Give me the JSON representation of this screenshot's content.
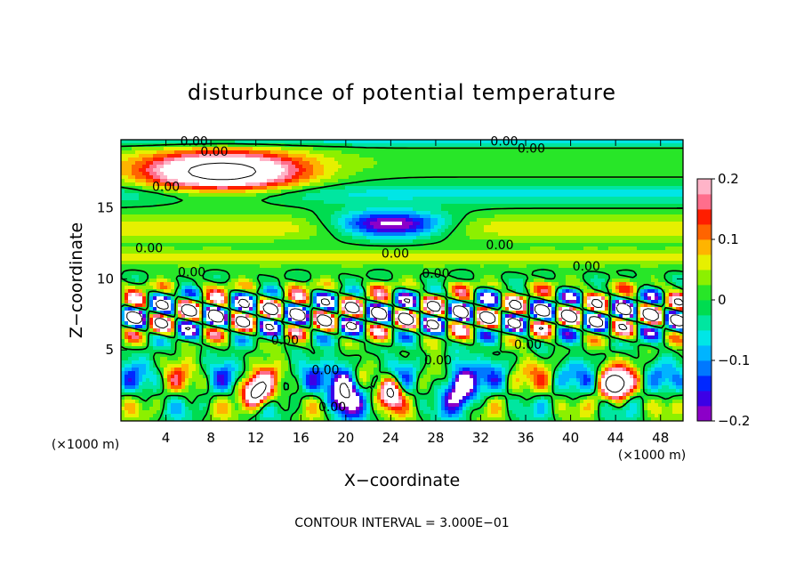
{
  "chart_data": {
    "type": "heatmap",
    "title": "disturbunce of potential temperature",
    "xlabel": "X−coordinate",
    "ylabel": "Z−coordinate",
    "x_unit_left": "(×1000 m)",
    "x_unit_right": "(×1000 m)",
    "xlim": [
      0,
      50
    ],
    "ylim": [
      0,
      19.8
    ],
    "x_ticks": [
      4,
      8,
      12,
      16,
      20,
      24,
      28,
      32,
      36,
      40,
      44,
      48
    ],
    "y_ticks": [
      5,
      10,
      15
    ],
    "colorbar": {
      "range": [
        -0.2,
        0.2
      ],
      "ticks": [
        {
          "value": 0.2,
          "label": "0.2"
        },
        {
          "value": 0.1,
          "label": "0.1"
        },
        {
          "value": 0.0,
          "label": "0"
        },
        {
          "value": -0.1,
          "label": "−0.1"
        },
        {
          "value": -0.2,
          "label": "−0.2"
        }
      ],
      "colors": [
        "#8c00c8",
        "#3c00e6",
        "#0028ff",
        "#0078ff",
        "#00b4ff",
        "#00e6e6",
        "#00e6a0",
        "#00dc50",
        "#28e628",
        "#8cf000",
        "#e6f000",
        "#ffb400",
        "#ff6400",
        "#ff1e00",
        "#ff6e8c",
        "#ffb4c8"
      ]
    },
    "contour_labels": [
      {
        "x": 6.5,
        "z": 19.7,
        "text": "0.00"
      },
      {
        "x": 8.3,
        "z": 19.0,
        "text": "0.00"
      },
      {
        "x": 4.0,
        "z": 16.5,
        "text": "0.00"
      },
      {
        "x": 2.5,
        "z": 12.2,
        "text": "0.00"
      },
      {
        "x": 6.3,
        "z": 10.5,
        "text": "0.00"
      },
      {
        "x": 24.4,
        "z": 11.8,
        "text": "0.00"
      },
      {
        "x": 28.0,
        "z": 10.4,
        "text": "0.00"
      },
      {
        "x": 33.7,
        "z": 12.4,
        "text": "0.00"
      },
      {
        "x": 34.1,
        "z": 19.7,
        "text": "0.00"
      },
      {
        "x": 36.5,
        "z": 19.2,
        "text": "0.00"
      },
      {
        "x": 41.4,
        "z": 10.9,
        "text": "0.00"
      },
      {
        "x": 14.6,
        "z": 5.7,
        "text": "0.00"
      },
      {
        "x": 18.8,
        "z": 1.0,
        "text": "0.00"
      },
      {
        "x": 18.2,
        "z": 3.6,
        "text": "0.00"
      },
      {
        "x": 28.2,
        "z": 4.3,
        "text": "0.00"
      },
      {
        "x": 36.2,
        "z": 5.4,
        "text": "0.00"
      }
    ],
    "footer": "CONTOUR INTERVAL = 3.000E−01",
    "grid": false
  }
}
